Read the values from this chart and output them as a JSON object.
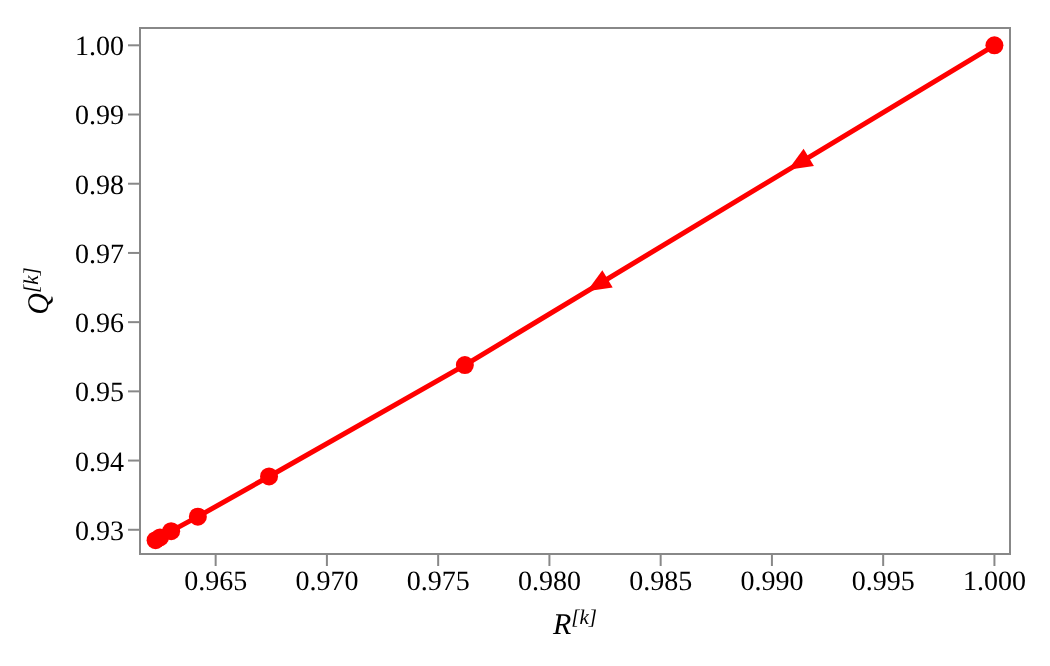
{
  "chart_data": {
    "type": "line",
    "xlabel": "R$^{[k]}$",
    "ylabel": "Q$^{[k]}$",
    "x": [
      1.0,
      0.9762,
      0.9674,
      0.9642,
      0.963,
      0.9625,
      0.9623
    ],
    "series": [
      {
        "color": "#ff0000",
        "values": [
          1.0,
          0.9538,
          0.9377,
          0.9319,
          0.9298,
          0.9289,
          0.9285
        ]
      }
    ],
    "xlim": [
      0.9616,
      1.0007
    ],
    "ylim": [
      0.9265,
      1.0025
    ],
    "xticks": [
      {
        "value": 0.965,
        "label": "0.965"
      },
      {
        "value": 0.97,
        "label": "0.970"
      },
      {
        "value": 0.975,
        "label": "0.975"
      },
      {
        "value": 0.98,
        "label": "0.980"
      },
      {
        "value": 0.985,
        "label": "0.985"
      },
      {
        "value": 0.99,
        "label": "0.990"
      },
      {
        "value": 0.995,
        "label": "0.995"
      },
      {
        "value": 1.0,
        "label": "1.000"
      }
    ],
    "yticks": [
      {
        "value": 0.93,
        "label": "0.93"
      },
      {
        "value": 0.94,
        "label": "0.94"
      },
      {
        "value": 0.95,
        "label": "0.95"
      },
      {
        "value": 0.96,
        "label": "0.96"
      },
      {
        "value": 0.97,
        "label": "0.97"
      },
      {
        "value": 0.98,
        "label": "0.98"
      },
      {
        "value": 0.99,
        "label": "0.99"
      },
      {
        "value": 1.0,
        "label": "1.00"
      }
    ],
    "marker": "circle",
    "line_style": "solid",
    "grid": false,
    "legend": false
  }
}
